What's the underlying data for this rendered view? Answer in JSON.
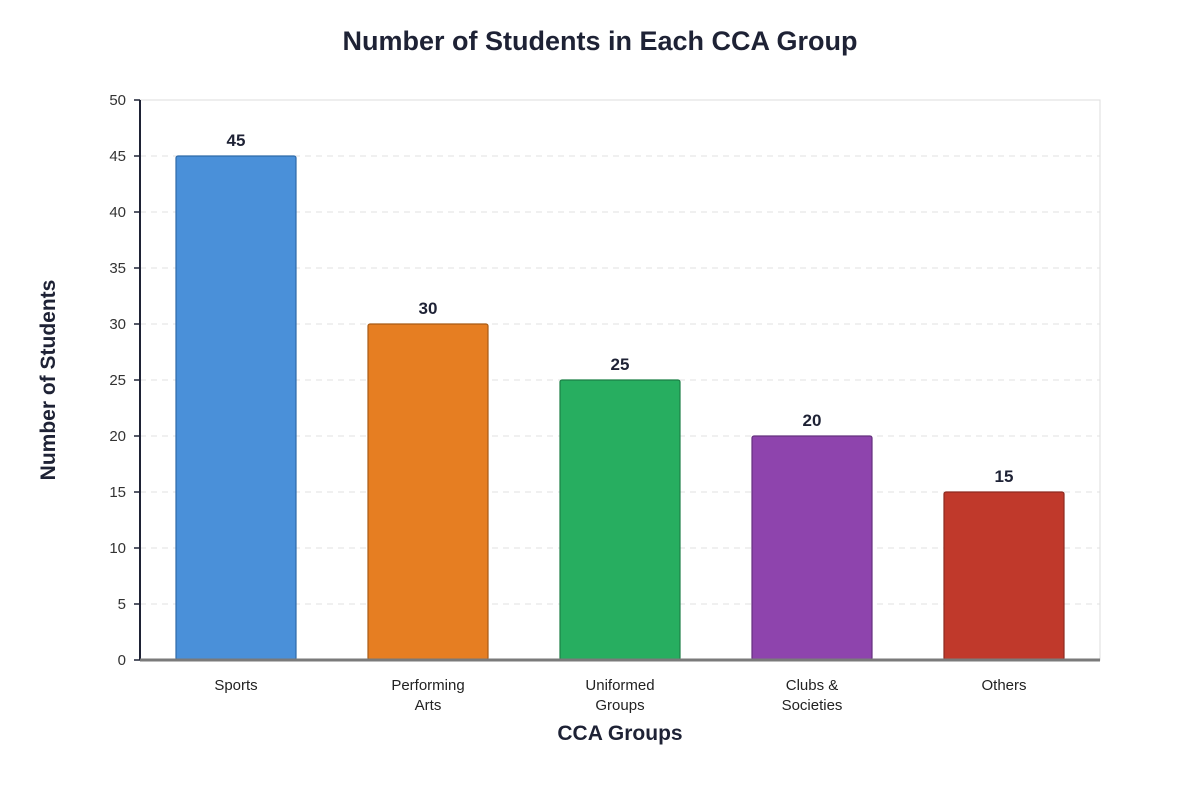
{
  "chart_data": {
    "type": "bar",
    "title": "Number of Students in Each CCA Group",
    "xlabel": "CCA Groups",
    "ylabel": "Number of Students",
    "categories": [
      [
        "Sports"
      ],
      [
        "Performing",
        "Arts"
      ],
      [
        "Uniformed",
        "Groups"
      ],
      [
        "Clubs &",
        "Societies"
      ],
      [
        "Others"
      ]
    ],
    "values": [
      45,
      30,
      25,
      20,
      15
    ],
    "colors": [
      "#4a90d9",
      "#e67e22",
      "#27ae60",
      "#8e44ad",
      "#c0392b"
    ],
    "border_colors": [
      "#2f6aa8",
      "#a85a14",
      "#1b7f45",
      "#65307e",
      "#8d2a20"
    ],
    "ylim": [
      0,
      50
    ],
    "yticks": [
      0,
      5,
      10,
      15,
      20,
      25,
      30,
      35,
      40,
      45,
      50
    ],
    "grid": true,
    "legend": "none"
  }
}
